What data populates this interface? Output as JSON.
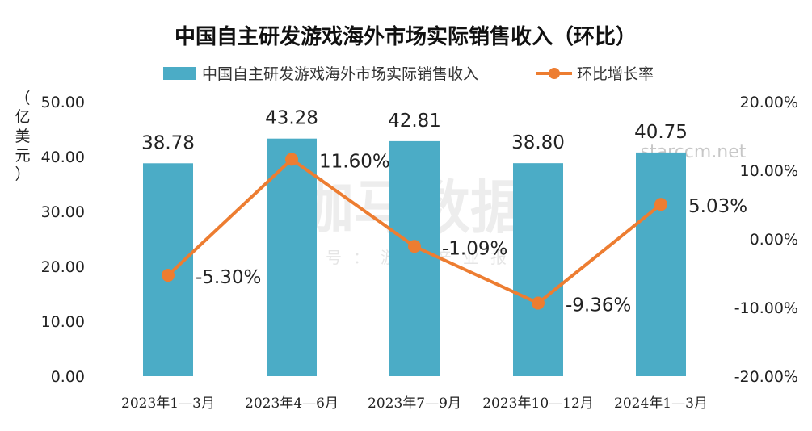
{
  "watermark": {
    "brand": "伽马数据",
    "wechat": "微信号：游戏产业报告",
    "site": "starccm.net"
  },
  "colors": {
    "bar": "#4bacc6",
    "line": "#ed7d31"
  },
  "chart_data": {
    "type": "bar",
    "title": "中国自主研发游戏海外市场实际销售收入（环比）",
    "categories": [
      "2023年1—3月",
      "2023年4—6月",
      "2023年7—9月",
      "2023年10—12月",
      "2024年1—3月"
    ],
    "series": [
      {
        "name": "中国自主研发游戏海外市场实际销售收入",
        "type": "bar",
        "axis": "left",
        "values": [
          38.78,
          43.28,
          42.81,
          38.8,
          40.75
        ],
        "labels": [
          "38.78",
          "43.28",
          "42.81",
          "38.80",
          "40.75"
        ]
      },
      {
        "name": "环比增长率",
        "type": "line",
        "axis": "right",
        "values": [
          -5.3,
          11.6,
          -1.09,
          -9.36,
          5.03
        ],
        "labels": [
          "-5.30%",
          "11.60%",
          "-1.09%",
          "-9.36%",
          "5.03%"
        ]
      }
    ],
    "ylabel_left": "（亿美元）",
    "ylabel_left_chars": [
      "（",
      "亿",
      "美",
      "元",
      "）"
    ],
    "yticks_left": [
      "0.00",
      "10.00",
      "20.00",
      "30.00",
      "40.00",
      "50.00"
    ],
    "ylim_left": [
      0,
      50
    ],
    "yticks_right": [
      "-20.00%",
      "-10.00%",
      "0.00%",
      "10.00%",
      "20.00%"
    ],
    "ylim_right": [
      -20,
      20
    ],
    "legend_position": "top-center",
    "grid": false
  }
}
